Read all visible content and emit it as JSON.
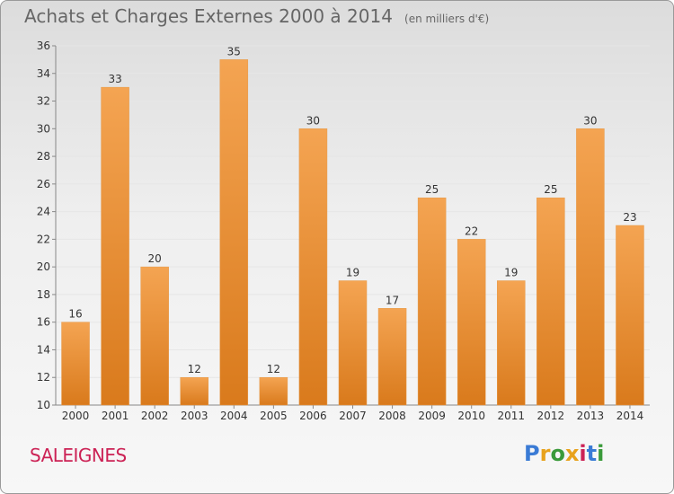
{
  "title": "Achats et Charges Externes 2000 à 2014",
  "unit": "(en milliers d'€)",
  "commune": "SALEIGNES",
  "logo": {
    "text": "Proxiti",
    "colors": [
      "#3a7bd5",
      "#e8a21c",
      "#3a9a3a",
      "#e8a21c",
      "#cc2255",
      "#3a7bd5",
      "#3a9a3a"
    ]
  },
  "colors": {
    "bar_top": "#f4a452",
    "bar_bottom": "#d97a1c",
    "axis": "#888888",
    "grid": "#e6e6e6",
    "text": "#333333",
    "commune": "#cc2255"
  },
  "chart_data": {
    "type": "bar",
    "categories": [
      "2000",
      "2001",
      "2002",
      "2003",
      "2004",
      "2005",
      "2006",
      "2007",
      "2008",
      "2009",
      "2010",
      "2011",
      "2012",
      "2013",
      "2014"
    ],
    "values": [
      16,
      33,
      20,
      12,
      35,
      12,
      30,
      19,
      17,
      25,
      22,
      19,
      25,
      30,
      23
    ],
    "ylim": [
      10,
      36
    ],
    "yticks": [
      10,
      12,
      14,
      16,
      18,
      20,
      22,
      24,
      26,
      28,
      30,
      32,
      34,
      36
    ],
    "grid": true,
    "data_labels": true
  }
}
